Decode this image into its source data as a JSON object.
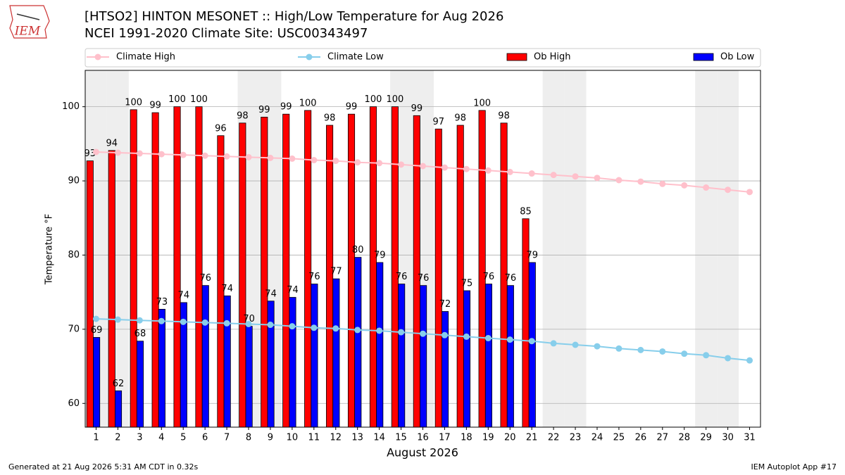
{
  "chart_data": {
    "type": "bar",
    "title": "[HTSO2] HINTON MESONET :: High/Low Temperature for Aug 2026",
    "subtitle": "NCEI 1991-2020 Climate Site: USC00343497",
    "logo_text": "IEM",
    "xlabel": "August 2026",
    "ylabel": "Temperature °F",
    "footer_left": "Generated at 21 Aug 2026 5:31 AM CDT in 0.32s",
    "footer_right": "IEM Autoplot App #17",
    "legend": "top",
    "grid": true,
    "xlim": [
      0.5,
      31.5
    ],
    "xticks": [
      1,
      2,
      3,
      4,
      5,
      6,
      7,
      8,
      9,
      10,
      11,
      12,
      13,
      14,
      15,
      16,
      17,
      18,
      19,
      20,
      21,
      22,
      23,
      24,
      25,
      26,
      27,
      28,
      29,
      30,
      31
    ],
    "ylim": [
      56.8,
      104.9
    ],
    "yticks": [
      60,
      70,
      80,
      90,
      100
    ],
    "shaded_days": [
      1,
      2,
      8,
      9,
      15,
      16,
      22,
      23,
      29,
      30
    ],
    "shade_color": "#eeeeee",
    "x": [
      1,
      2,
      3,
      4,
      5,
      6,
      7,
      8,
      9,
      10,
      11,
      12,
      13,
      14,
      15,
      16,
      17,
      18,
      19,
      20,
      21,
      22,
      23,
      24,
      25,
      26,
      27,
      28,
      29,
      30,
      31
    ],
    "series": [
      {
        "name": "Climate High",
        "type": "line",
        "color": "#ffc0cb",
        "values": [
          93.9,
          93.8,
          93.7,
          93.6,
          93.5,
          93.4,
          93.3,
          93.2,
          93.1,
          93.0,
          92.8,
          92.7,
          92.5,
          92.4,
          92.2,
          92.0,
          91.8,
          91.6,
          91.4,
          91.2,
          91.0,
          90.8,
          90.6,
          90.4,
          90.1,
          89.9,
          89.6,
          89.4,
          89.1,
          88.8,
          88.5
        ]
      },
      {
        "name": "Climate Low",
        "type": "line",
        "color": "#87ceeb",
        "values": [
          71.4,
          71.3,
          71.2,
          71.1,
          71.0,
          70.9,
          70.8,
          70.7,
          70.6,
          70.4,
          70.2,
          70.1,
          69.9,
          69.8,
          69.6,
          69.4,
          69.2,
          69.0,
          68.8,
          68.6,
          68.4,
          68.1,
          67.9,
          67.7,
          67.4,
          67.2,
          67.0,
          66.7,
          66.5,
          66.1,
          65.8
        ]
      },
      {
        "name": "Ob High",
        "type": "bar",
        "color": "#ff0000",
        "values": [
          92.7,
          94.1,
          99.6,
          99.2,
          100.0,
          100.0,
          96.1,
          97.8,
          98.6,
          99.0,
          99.5,
          97.5,
          99.0,
          100.0,
          100.0,
          98.8,
          97.0,
          97.5,
          99.5,
          97.8,
          84.9,
          null,
          null,
          null,
          null,
          null,
          null,
          null,
          null,
          null,
          null
        ],
        "value_labels": [
          "93",
          "94",
          "100",
          "99",
          "100",
          "100",
          "96",
          "98",
          "99",
          "99",
          "100",
          "98",
          "99",
          "100",
          "100",
          "99",
          "97",
          "98",
          "100",
          "98",
          "85",
          null,
          null,
          null,
          null,
          null,
          null,
          null,
          null,
          null,
          null
        ]
      },
      {
        "name": "Ob Low",
        "type": "bar",
        "color": "#0000ff",
        "values": [
          68.9,
          61.7,
          68.4,
          72.7,
          73.6,
          75.9,
          74.5,
          70.4,
          73.8,
          74.3,
          76.1,
          76.8,
          79.7,
          79.0,
          76.1,
          75.9,
          72.4,
          75.2,
          76.1,
          75.9,
          79.0,
          null,
          null,
          null,
          null,
          null,
          null,
          null,
          null,
          null,
          null
        ],
        "value_labels": [
          "69",
          "62",
          "68",
          "73",
          "74",
          "76",
          "74",
          "70",
          "74",
          "74",
          "76",
          "77",
          "80",
          "79",
          "76",
          "76",
          "72",
          "75",
          "76",
          "76",
          "79",
          null,
          null,
          null,
          null,
          null,
          null,
          null,
          null,
          null,
          null
        ]
      }
    ]
  }
}
